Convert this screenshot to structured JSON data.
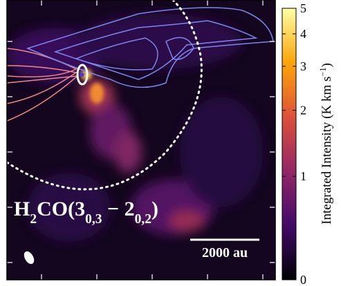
{
  "chart_data": {
    "type": "image",
    "annotation": [
      {
        "text": "H"
      },
      {
        "text": "2",
        "sub": true
      },
      {
        "text": "CO(3"
      },
      {
        "text": "0,3",
        "sub": true
      },
      {
        "text": " − 2"
      },
      {
        "text": "0,2",
        "sub": true
      },
      {
        "text": ")"
      }
    ],
    "scale_bar": "2000 au",
    "colorbar": {
      "label": [
        {
          "text": "Integrated Intensity (K km s"
        },
        {
          "text": "−1",
          "sup": true
        },
        {
          "text": ")"
        }
      ],
      "lim": [
        0,
        5
      ],
      "ticks": [
        0,
        1,
        2,
        3,
        4,
        5
      ],
      "stretch": "asinh",
      "colors": [
        "#000004",
        "#420a68",
        "#932667",
        "#dd513a",
        "#fca50a",
        "#fcffa4"
      ]
    }
  }
}
